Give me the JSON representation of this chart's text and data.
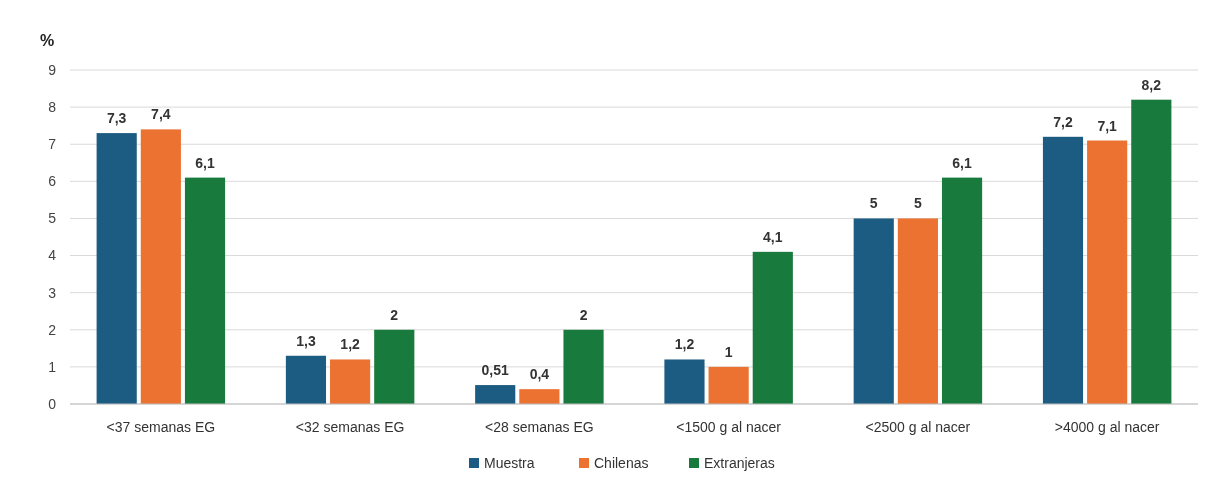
{
  "chart_data": {
    "type": "bar",
    "ylabel": "%",
    "categories": [
      "<37 semanas EG",
      "<32 semanas EG",
      "<28 semanas EG",
      "<1500 g al nacer",
      "<2500 g al nacer",
      ">4000 g al nacer"
    ],
    "series": [
      {
        "name": "Muestra",
        "color": "#1c5c82",
        "values": [
          7.3,
          1.3,
          0.51,
          1.2,
          5,
          7.2
        ],
        "value_labels": [
          "7,3",
          "1,3",
          "0,51",
          "1,2",
          "5",
          "7,2"
        ]
      },
      {
        "name": "Chilenas",
        "color": "#eb7231",
        "values": [
          7.4,
          1.2,
          0.4,
          1,
          5,
          7.1
        ],
        "value_labels": [
          "7,4",
          "1,2",
          "0,4",
          "1",
          "5",
          "7,1"
        ]
      },
      {
        "name": "Extranjeras",
        "color": "#187a3d",
        "values": [
          6.1,
          2,
          2,
          4.1,
          6.1,
          8.2
        ],
        "value_labels": [
          "6,1",
          "2",
          "2",
          "4,1",
          "6,1",
          "8,2"
        ]
      }
    ],
    "ylim": [
      0,
      9
    ],
    "yticks": [
      0,
      1,
      2,
      3,
      4,
      5,
      6,
      7,
      8,
      9
    ],
    "grid": "y",
    "legend": "bottom"
  }
}
